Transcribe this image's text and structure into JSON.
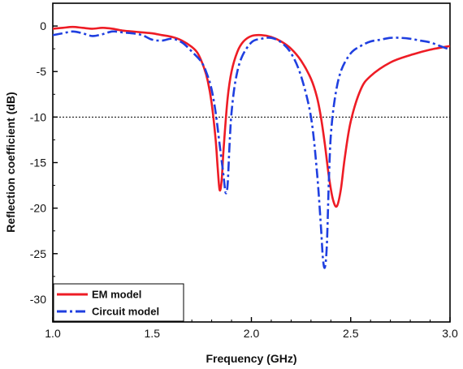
{
  "chart_data": {
    "type": "line",
    "title": "",
    "xlabel": "Frequency (GHz)",
    "ylabel": "Reflection coefficient (dB)",
    "xlim": [
      1.0,
      3.0
    ],
    "ylim": [
      -32.5,
      2.5
    ],
    "xticks": [
      1.0,
      1.5,
      2.0,
      2.5,
      3.0
    ],
    "xtick_labels": [
      "1.0",
      "1.5",
      "2.0",
      "2.5",
      "3.0"
    ],
    "yticks": [
      0,
      -5,
      -10,
      -15,
      -20,
      -25,
      -30
    ],
    "ytick_labels": [
      "0",
      "-5",
      "-10",
      "-15",
      "-20",
      "-25",
      "-30"
    ],
    "grid": false,
    "legend_position": "bottom-left",
    "reference_line": {
      "y": -10,
      "style": "dotted",
      "color": "#000000"
    },
    "series": [
      {
        "name": "EM model",
        "color": "#ee1c25",
        "style": "solid",
        "x": [
          1.0,
          1.05,
          1.1,
          1.15,
          1.2,
          1.25,
          1.3,
          1.35,
          1.4,
          1.45,
          1.5,
          1.55,
          1.6,
          1.65,
          1.7,
          1.73,
          1.76,
          1.78,
          1.8,
          1.82,
          1.83,
          1.84,
          1.85,
          1.86,
          1.88,
          1.9,
          1.93,
          1.96,
          2.0,
          2.05,
          2.1,
          2.15,
          2.2,
          2.25,
          2.3,
          2.33,
          2.35,
          2.37,
          2.39,
          2.41,
          2.43,
          2.45,
          2.47,
          2.5,
          2.55,
          2.6,
          2.7,
          2.8,
          2.9,
          3.0
        ],
        "y": [
          -0.3,
          -0.2,
          -0.1,
          -0.2,
          -0.3,
          -0.2,
          -0.3,
          -0.5,
          -0.6,
          -0.7,
          -0.8,
          -1.0,
          -1.2,
          -1.6,
          -2.3,
          -3.0,
          -4.5,
          -6.0,
          -8.5,
          -12.5,
          -15.5,
          -18.0,
          -17.0,
          -13.5,
          -8.0,
          -5.0,
          -2.8,
          -1.7,
          -1.1,
          -1.0,
          -1.2,
          -1.7,
          -2.5,
          -3.8,
          -5.8,
          -7.8,
          -10.0,
          -13.0,
          -16.5,
          -19.0,
          -19.8,
          -18.0,
          -14.5,
          -10.5,
          -7.0,
          -5.5,
          -4.0,
          -3.2,
          -2.6,
          -2.2
        ]
      },
      {
        "name": "Circuit model",
        "color": "#1f3fe0",
        "style": "dashdot",
        "x": [
          1.0,
          1.05,
          1.1,
          1.15,
          1.2,
          1.25,
          1.3,
          1.35,
          1.4,
          1.45,
          1.5,
          1.55,
          1.6,
          1.65,
          1.7,
          1.75,
          1.78,
          1.8,
          1.82,
          1.84,
          1.86,
          1.87,
          1.88,
          1.89,
          1.9,
          1.92,
          1.95,
          2.0,
          2.05,
          2.1,
          2.15,
          2.2,
          2.25,
          2.3,
          2.33,
          2.35,
          2.36,
          2.37,
          2.38,
          2.39,
          2.4,
          2.42,
          2.45,
          2.5,
          2.55,
          2.6,
          2.65,
          2.7,
          2.75,
          2.8,
          2.85,
          2.9,
          2.95,
          3.0
        ],
        "y": [
          -1.0,
          -0.8,
          -0.6,
          -0.8,
          -1.1,
          -0.9,
          -0.6,
          -0.7,
          -0.8,
          -1.0,
          -1.5,
          -1.6,
          -1.4,
          -1.8,
          -2.8,
          -4.0,
          -5.5,
          -7.0,
          -9.5,
          -13.0,
          -16.5,
          -18.3,
          -17.5,
          -13.0,
          -9.5,
          -6.0,
          -3.5,
          -1.8,
          -1.4,
          -1.3,
          -1.8,
          -3.0,
          -5.5,
          -10.0,
          -16.0,
          -22.0,
          -25.5,
          -26.5,
          -24.0,
          -17.0,
          -12.0,
          -8.0,
          -5.0,
          -3.0,
          -2.2,
          -1.7,
          -1.5,
          -1.3,
          -1.3,
          -1.4,
          -1.6,
          -1.8,
          -2.2,
          -2.6
        ]
      }
    ]
  }
}
